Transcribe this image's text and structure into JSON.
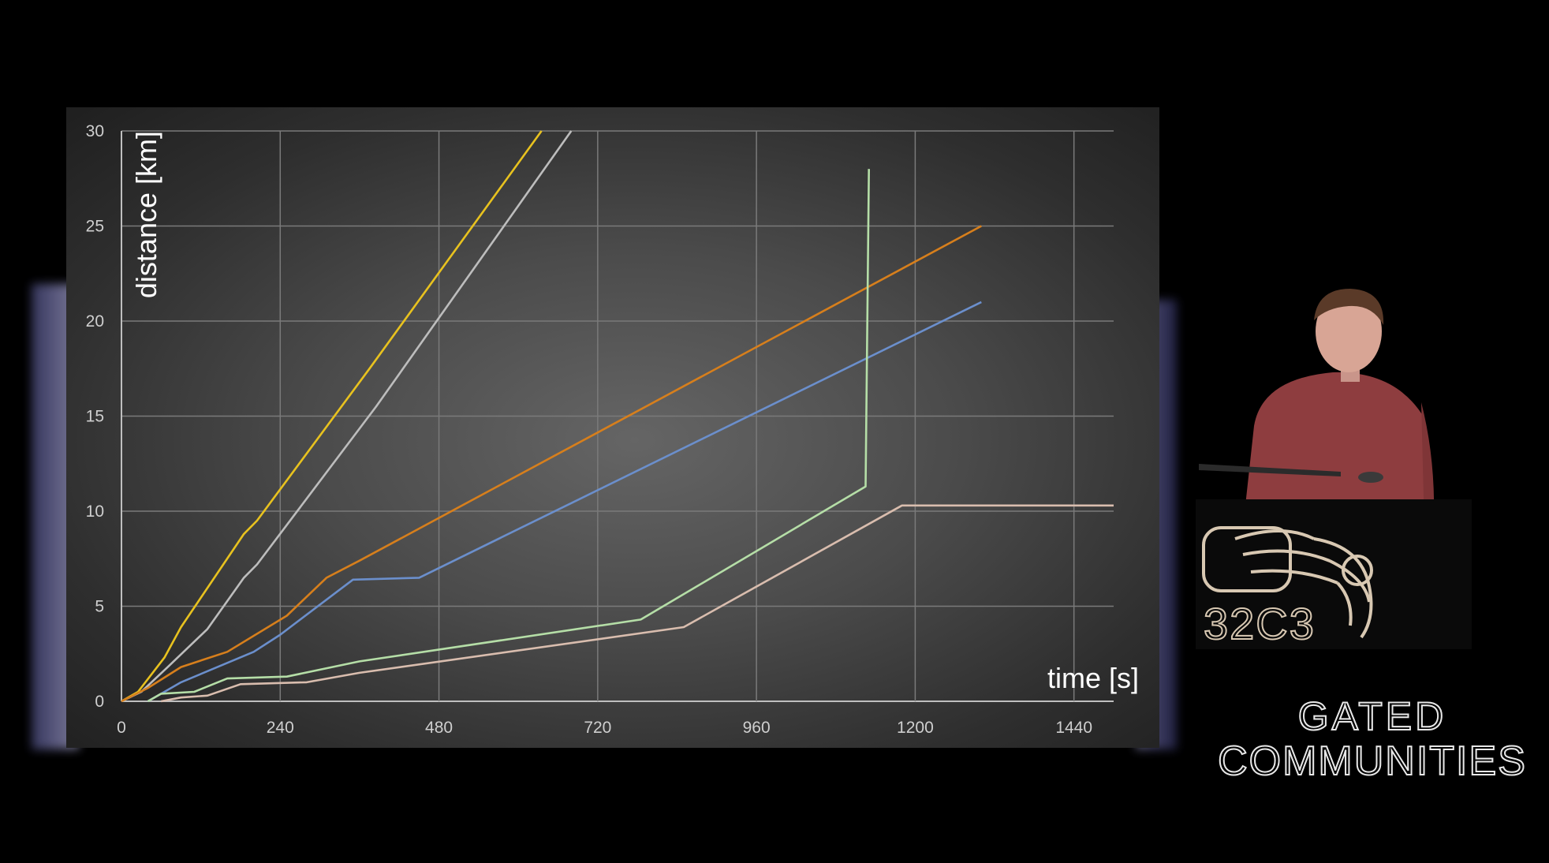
{
  "chart_data": {
    "type": "line",
    "xlabel": "time [s]",
    "ylabel": "distance [km]",
    "xlim": [
      0,
      1500
    ],
    "ylim": [
      0,
      30
    ],
    "x_ticks": [
      0,
      240,
      480,
      720,
      960,
      1200,
      1440
    ],
    "y_ticks": [
      0,
      5,
      10,
      15,
      20,
      25,
      30
    ],
    "grid": true,
    "series": [
      {
        "color": "#e8c21f",
        "points": [
          [
            0,
            0
          ],
          [
            25,
            0.5
          ],
          [
            65,
            2.3
          ],
          [
            90,
            3.9
          ],
          [
            185,
            8.8
          ],
          [
            205,
            9.5
          ],
          [
            375,
            17.5
          ],
          [
            635,
            30
          ]
        ]
      },
      {
        "color": "#bdbdbd",
        "points": [
          [
            0,
            0
          ],
          [
            30,
            0.5
          ],
          [
            70,
            1.8
          ],
          [
            130,
            3.8
          ],
          [
            185,
            6.5
          ],
          [
            205,
            7.2
          ],
          [
            385,
            15.5
          ],
          [
            680,
            30
          ]
        ]
      },
      {
        "color": "#d77f1c",
        "points": [
          [
            0,
            0
          ],
          [
            40,
            0.7
          ],
          [
            90,
            1.8
          ],
          [
            160,
            2.6
          ],
          [
            250,
            4.5
          ],
          [
            310,
            6.5
          ],
          [
            360,
            7.4
          ],
          [
            1300,
            25
          ]
        ]
      },
      {
        "color": "#6b8fcc",
        "points": [
          [
            40,
            0
          ],
          [
            65,
            0.5
          ],
          [
            90,
            1.0
          ],
          [
            200,
            2.6
          ],
          [
            240,
            3.5
          ],
          [
            350,
            6.4
          ],
          [
            450,
            6.5
          ],
          [
            1300,
            21
          ]
        ]
      },
      {
        "color": "#b5dea7",
        "points": [
          [
            40,
            0
          ],
          [
            60,
            0.4
          ],
          [
            110,
            0.5
          ],
          [
            160,
            1.2
          ],
          [
            250,
            1.3
          ],
          [
            360,
            2.1
          ],
          [
            785,
            4.3
          ],
          [
            1125,
            11.3
          ],
          [
            1130,
            28
          ]
        ]
      },
      {
        "color": "#d9bdae",
        "points": [
          [
            60,
            0
          ],
          [
            90,
            0.2
          ],
          [
            130,
            0.3
          ],
          [
            180,
            0.9
          ],
          [
            280,
            1.0
          ],
          [
            360,
            1.5
          ],
          [
            850,
            3.9
          ],
          [
            1180,
            10.3
          ],
          [
            1500,
            10.3
          ]
        ]
      }
    ]
  },
  "branding": {
    "event_logo": "32C3",
    "event_motto_line1": "GATED",
    "event_motto_line2": "COMMUNITIES"
  }
}
